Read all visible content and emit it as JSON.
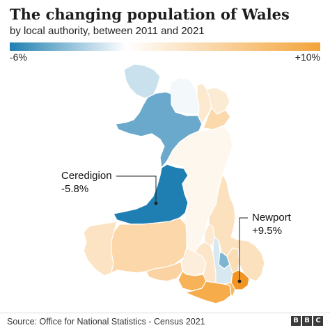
{
  "title": "The changing population of Wales",
  "subtitle": "by local authority, between 2011 and 2021",
  "legend": {
    "min_label": "-6%",
    "max_label": "+10%",
    "min_color": "#1f7fb2",
    "mid_color": "#ffffff",
    "max_color": "#f3a43a"
  },
  "regions": [
    {
      "name": "Anglesey",
      "color": "#c9e1ec"
    },
    {
      "name": "Conwy",
      "color": "#f3f8fb"
    },
    {
      "name": "Denbighshire",
      "color": "#fde9cf"
    },
    {
      "name": "Flintshire",
      "color": "#fcebd3"
    },
    {
      "name": "Wrexham",
      "color": "#fcd9ad"
    },
    {
      "name": "Gwynedd",
      "color": "#6aa9cc"
    },
    {
      "name": "Powys",
      "color": "#fef7ee"
    },
    {
      "name": "Ceredigion",
      "color": "#1f7fb2"
    },
    {
      "name": "Pembrokeshire",
      "color": "#fce3c4"
    },
    {
      "name": "Carmarthenshire",
      "color": "#fcd7a9"
    },
    {
      "name": "Swansea",
      "color": "#fbd3a2"
    },
    {
      "name": "Neath Port Talbot",
      "color": "#fdeedb"
    },
    {
      "name": "Bridgend",
      "color": "#f8b35a"
    },
    {
      "name": "Vale of Glamorgan",
      "color": "#f6ac4b"
    },
    {
      "name": "Rhondda Cynon Taf",
      "color": "#fce5c8"
    },
    {
      "name": "Merthyr Tydfil",
      "color": "#fde8d0"
    },
    {
      "name": "Blaenau Gwent",
      "color": "#7db5d3"
    },
    {
      "name": "Caerphilly",
      "color": "#d7e8f0"
    },
    {
      "name": "Torfaen",
      "color": "#fbddb5"
    },
    {
      "name": "Monmouthshire",
      "color": "#fce1bf"
    },
    {
      "name": "Newport",
      "color": "#f29522"
    },
    {
      "name": "Cardiff",
      "color": "#f8b964"
    }
  ],
  "annotations": {
    "ceredigion": {
      "name": "Ceredigion",
      "value": "-5.8%"
    },
    "newport": {
      "name": "Newport",
      "value": "+9.5%"
    }
  },
  "source": "Source: Office for National Statistics - Census 2021",
  "logo": "BBC"
}
